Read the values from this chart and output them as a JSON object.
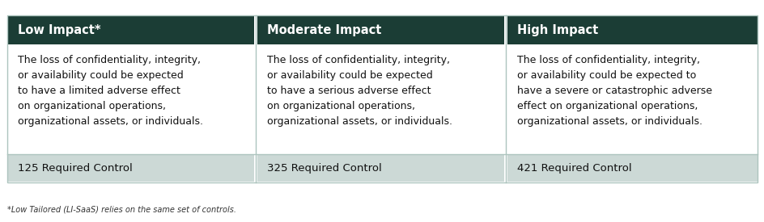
{
  "header_bg": "#1b3d35",
  "header_text_color": "#ffffff",
  "body_bg": "#ffffff",
  "footer_bg": "#ccd9d6",
  "divider_color": "#adc4be",
  "columns": [
    "Low Impact*",
    "Moderate Impact",
    "High Impact"
  ],
  "descriptions": [
    "The loss of confidentiality, integrity,\nor availability could be expected\nto have a limited adverse effect\non organizational operations,\norganizational assets, or individuals.",
    "The loss of confidentiality, integrity,\nor availability could be expected\nto have a serious adverse effect\non organizational operations,\norganizational assets, or individuals.",
    "The loss of confidentiality, integrity,\nor availability could be expected to\nhave a severe or catastrophic adverse\neffect on organizational operations,\norganizational assets, or individuals."
  ],
  "controls": [
    "125 Required Control",
    "325 Required Control",
    "421 Required Control"
  ],
  "footnote": "*Low Tailored (LI-SaaS) relies on the same set of controls.",
  "header_fontsize": 10.5,
  "body_fontsize": 9.0,
  "control_fontsize": 9.5,
  "footnote_fontsize": 7.0,
  "fig_width": 9.45,
  "fig_height": 2.75,
  "col_splits": [
    0.0,
    0.3333,
    0.6666,
    1.0
  ]
}
